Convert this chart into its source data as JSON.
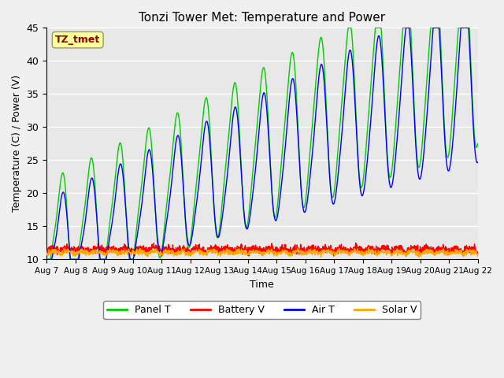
{
  "title": "Tonzi Tower Met: Temperature and Power",
  "xlabel": "Time",
  "ylabel": "Temperature (C) / Power (V)",
  "ylim": [
    10,
    45
  ],
  "xlim_days": [
    0,
    15
  ],
  "tick_labels": [
    "Aug 7",
    "Aug 8",
    "Aug 9",
    "Aug 10",
    "Aug 11",
    "Aug 12",
    "Aug 13",
    "Aug 14",
    "Aug 15",
    "Aug 16",
    "Aug 17",
    "Aug 18",
    "Aug 19",
    "Aug 20",
    "Aug 21",
    "Aug 22"
  ],
  "annotation_text": "TZ_tmet",
  "annotation_color": "#8B0000",
  "annotation_bg": "#FFFF99",
  "panel_color": "#00CC00",
  "battery_color": "#FF0000",
  "air_color": "#0000FF",
  "solar_color": "#FFA500",
  "bg_color": "#E8E8E8",
  "plot_bg": "#E8E8E8",
  "grid_color": "#FFFFFF",
  "legend_labels": [
    "Panel T",
    "Battery V",
    "Air T",
    "Solar V"
  ],
  "n_points": 1500
}
